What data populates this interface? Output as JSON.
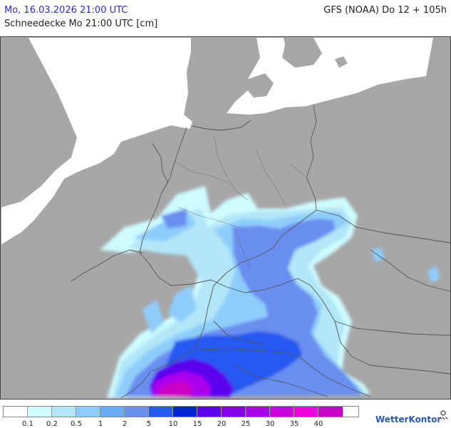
{
  "header": {
    "date": "Mo, 16.03.2026 21:00 UTC",
    "model": "GFS (NOAA) Do 12 + 105h",
    "field": "Schneedecke Mo 21:00 UTC [cm]"
  },
  "legend": {
    "ticks": [
      "0.1",
      "0.2",
      "0.5",
      "1",
      "2",
      "5",
      "10",
      "15",
      "20",
      "25",
      "30",
      "35",
      "40"
    ],
    "colors": [
      "#ffffff",
      "#cdfbff",
      "#b2e6f8",
      "#8ecdfb",
      "#6aaaf6",
      "#6a8ef0",
      "#2658f2",
      "#0022d8",
      "#5a00ee",
      "#8600f0",
      "#aa00ee",
      "#cc00dd",
      "#ee00d8",
      "#cc00c4"
    ]
  },
  "brand": {
    "name": "WetterKontor",
    "icon": "weather-icon"
  },
  "map": {
    "colors": {
      "land": "#a7a7a7",
      "sea": "#ffffff",
      "border": "#555555"
    }
  }
}
